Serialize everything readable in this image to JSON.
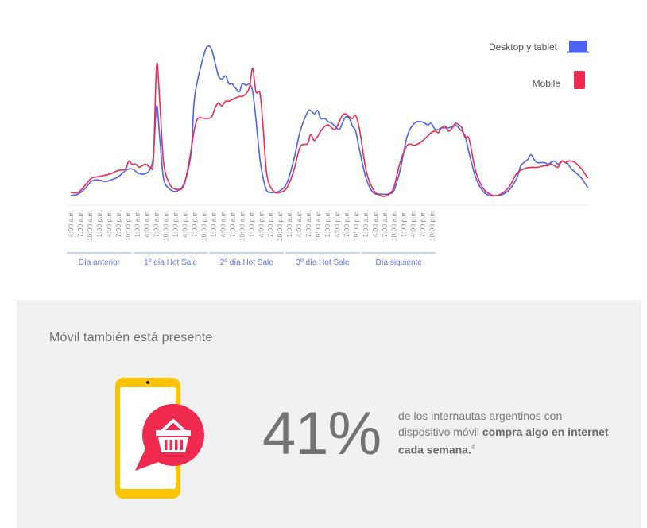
{
  "chart_data": {
    "type": "line",
    "title": "",
    "xlabel": "",
    "ylabel": "",
    "x_unit": "hours since 4:00 a.m. of Día anterior",
    "ylim": [
      0,
      100
    ],
    "grid": false,
    "legend": {
      "placement": "top-right",
      "entries": [
        "Desktop y tablet",
        "Mobile"
      ]
    },
    "tick_labels": [
      "4:00 a.m.",
      "7:00 a.m.",
      "10:00 a.m.",
      "1:00 p.m.",
      "4:00 p.m.",
      "7:00 p.m.",
      "10:00 p.m.",
      "1:00 a.m.",
      "4:00 a.m.",
      "7:00 a.m.",
      "10:00 a.m.",
      "1:00 p.m.",
      "4:00 p.m.",
      "7:00 p.m.",
      "10:00 p.m.",
      "1:00 a.m.",
      "4:00 a.m.",
      "7:00 a.m.",
      "10:00 a.m.",
      "1:00 p.m.",
      "4:00 p.m.",
      "7:00 p.m.",
      "10:00 p.m.",
      "1:00 a.m.",
      "4:00 a.m.",
      "7:00 a.m.",
      "10:00 a.m.",
      "1:00 p.m.",
      "4:00 p.m.",
      "7:00 p.m.",
      "10:00 p.m.",
      "1:00 a.m.",
      "4:00 a.m.",
      "7:00 a.m.",
      "10:00 a.m.",
      "1:00 p.m.",
      "4:00 p.m.",
      "7:00 p.m.",
      "10:00 p.m."
    ],
    "groups": [
      {
        "label": "Día anterior",
        "from_tick": 0,
        "to_tick": 6
      },
      {
        "label": "1º día Hot Sale",
        "from_tick": 7,
        "to_tick": 14
      },
      {
        "label": "2º día Hot Sale",
        "from_tick": 15,
        "to_tick": 22
      },
      {
        "label": "3º día Hot Sale",
        "from_tick": 23,
        "to_tick": 30
      },
      {
        "label": "Día siguiente",
        "from_tick": 31,
        "to_tick": 38
      }
    ],
    "series": [
      {
        "name": "Desktop y tablet",
        "color": "#4a63f0",
        "x": [
          0,
          2.3,
          4.3,
          6.5,
          8.5,
          10.8,
          12.8,
          15,
          17.3,
          19.3,
          21.6,
          23.6,
          25.1,
          26.1,
          27.1,
          28.1,
          29.3,
          31.3,
          33.6,
          35.8,
          37.9,
          38.9,
          40.1,
          42.4,
          43.4,
          44.4,
          45.6,
          46.6,
          47.6,
          48.9,
          49.9,
          50.9,
          52.1,
          53.2,
          54.1,
          55.4,
          56.4,
          57.4,
          58.4,
          59.7,
          60.7,
          61.9,
          63.9,
          65.9,
          68.2,
          70.4,
          72.4,
          74.7,
          75.7,
          76.9,
          77.9,
          78.9,
          80.2,
          81.2,
          82.4,
          83.4,
          84.7,
          85.7,
          86.7,
          87.9,
          88.9,
          89.9,
          91.2,
          93.2,
          95.4,
          97.7,
          99.7,
          101.9,
          103.9,
          106.2,
          108.5,
          110.5,
          112.7,
          113.7,
          115,
          116,
          116.9,
          118.2,
          119.2,
          120.4,
          121.4,
          122.4,
          123.4,
          124.4,
          125.7,
          127.7,
          130,
          132.2,
          134.2,
          136.5,
          138.5,
          140.7,
          142,
          143,
          144.2,
          145.2,
          146.2,
          147.2,
          148.5,
          149.5,
          150.5,
          151.5,
          152.7,
          153.7,
          155,
          156,
          156.9,
          157.9,
          159.2,
          160.2,
          161.2,
          162.2,
          163.2
        ],
        "values": [
          2,
          3,
          6,
          11,
          12,
          11,
          12,
          14,
          18,
          19,
          16,
          16,
          19,
          28,
          59,
          38,
          13,
          6,
          5,
          10,
          28,
          61,
          76,
          94,
          97,
          95,
          86,
          78,
          76,
          78,
          73,
          73,
          70,
          68,
          73,
          72,
          73,
          68,
          51,
          25,
          13,
          5,
          4,
          5,
          10,
          25,
          43,
          55,
          56,
          54,
          56,
          51,
          51,
          49,
          48,
          46,
          44,
          48,
          52,
          51,
          46,
          43,
          30,
          13,
          4,
          3,
          3,
          5,
          18,
          40,
          48,
          49,
          47,
          48,
          44,
          44,
          45,
          45,
          45,
          46,
          47,
          45,
          43,
          40,
          29,
          14,
          5,
          2,
          2,
          3,
          6,
          13,
          21,
          23,
          25,
          28,
          25,
          23,
          23,
          23,
          22,
          23,
          24,
          22,
          24,
          23,
          22,
          19,
          17,
          15,
          13,
          10,
          7
        ]
      },
      {
        "name": "Mobile",
        "color": "#f0294f",
        "x": [
          0,
          2.3,
          4.3,
          6.5,
          8.5,
          10.8,
          12.8,
          15,
          17.3,
          18.3,
          19.3,
          20.6,
          21.6,
          23.6,
          25.1,
          26.1,
          27.1,
          28.1,
          29.3,
          31.3,
          33.6,
          35.8,
          37.9,
          38.9,
          40.1,
          42.4,
          44.4,
          45.6,
          46.6,
          47.6,
          48.9,
          49.9,
          50.9,
          53.2,
          54.1,
          55.4,
          56.4,
          57.4,
          58.4,
          59.7,
          60.7,
          61.9,
          63.9,
          65.9,
          68.2,
          70.4,
          72.4,
          74.7,
          75.7,
          76.9,
          78.9,
          80.2,
          81.2,
          82.4,
          83.4,
          84.7,
          85.7,
          86.7,
          87.9,
          88.9,
          89.9,
          91.2,
          93.2,
          95.4,
          97.7,
          99.7,
          101.9,
          103.9,
          106.2,
          108.5,
          110.5,
          112.7,
          113.7,
          115,
          116,
          116.9,
          118.2,
          119.2,
          120.4,
          121.4,
          122.4,
          123.4,
          124.4,
          125.7,
          127.7,
          130,
          132.2,
          134.2,
          136.5,
          138.5,
          140.7,
          143,
          145.2,
          147.2,
          149.5,
          150.5,
          151.5,
          152.7,
          153.7,
          155,
          156,
          156.9,
          157.9,
          159.2,
          160.2,
          161.2,
          162.2,
          163.2
        ],
        "values": [
          4,
          4,
          8,
          13,
          14,
          15,
          16,
          18,
          19,
          24,
          22,
          22,
          20,
          22,
          20,
          25,
          85,
          61,
          23,
          9,
          6,
          9,
          30,
          43,
          51,
          51,
          52,
          58,
          61,
          59,
          62,
          62,
          63,
          65,
          65,
          67,
          71,
          83,
          68,
          67,
          45,
          15,
          5,
          4,
          7,
          18,
          33,
          35,
          41,
          37,
          43,
          46,
          47,
          45,
          44,
          49,
          53,
          54,
          52,
          51,
          53,
          43,
          18,
          6,
          2,
          2,
          7,
          23,
          34,
          34,
          36,
          40,
          42,
          43,
          42,
          45,
          46,
          43,
          45,
          48,
          47,
          45,
          39,
          38,
          18,
          7,
          3,
          2,
          4,
          8,
          16,
          19,
          20,
          20,
          21,
          21,
          22,
          21,
          20,
          24,
          23,
          24,
          24,
          23,
          21,
          19,
          16,
          13
        ]
      }
    ]
  },
  "legend": {
    "desktop_label": "Desktop y tablet",
    "mobile_label": "Mobile",
    "desktop_icon": "laptop-icon",
    "mobile_icon": "phone-icon"
  },
  "panel": {
    "title": "Móvil también está presente",
    "stat": "41%",
    "desc_plain": "de los internautas argentinos con dispositivo móvil ",
    "desc_bold": "compra algo en internet cada semana.",
    "desc_sup": "4",
    "icon": "phone-shopping-basket-icon",
    "colors": {
      "phone": "#ffc400",
      "bubble": "#f0294f",
      "panel_bg": "#f1f1f1"
    }
  }
}
